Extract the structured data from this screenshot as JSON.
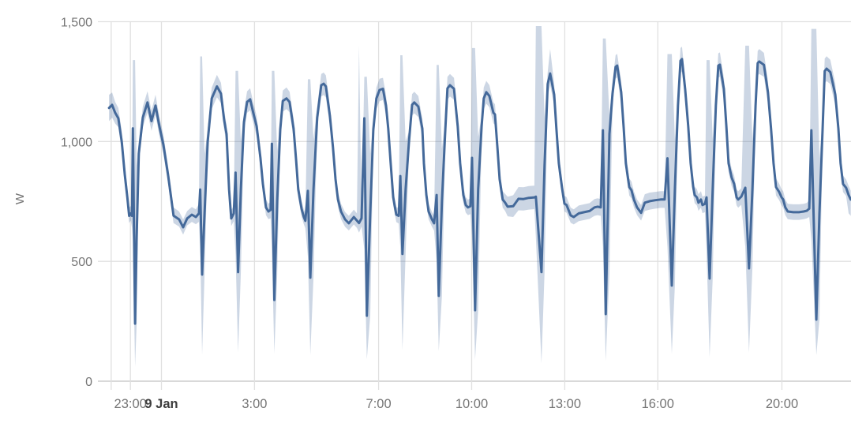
{
  "page": {
    "background": "#ffffff"
  },
  "chart_data": {
    "type": "line",
    "title": "",
    "subtitle": "",
    "xlabel": "",
    "ylabel": "W",
    "unit": "W",
    "legend": "none",
    "grid": true,
    "description": "Power (W) statistics over ~24 h: mean line with min/max band",
    "colors": {
      "mean_line": "#44699a",
      "minmax_band": "rgba(68,105,154,0.27)",
      "grid_line": "#e0e0e0",
      "axis_line": "#c2c2c2",
      "tick_label": "#757575",
      "day_label": "#3d3d3d"
    },
    "x_range_hours": [
      -1.692,
      22.227
    ],
    "ylim": [
      0,
      1500
    ],
    "x_ticks": [
      {
        "hours": -1.62,
        "label": "",
        "bold": false
      },
      {
        "hours": -1,
        "label": "23:00",
        "bold": false
      },
      {
        "hours": 0,
        "label": "9 Jan",
        "bold": true
      },
      {
        "hours": 3,
        "label": "3:00",
        "bold": false
      },
      {
        "hours": 7,
        "label": "7:00",
        "bold": false
      },
      {
        "hours": 10,
        "label": "10:00",
        "bold": false
      },
      {
        "hours": 13,
        "label": "13:00",
        "bold": false
      },
      {
        "hours": 16,
        "label": "16:00",
        "bold": false
      },
      {
        "hours": 20,
        "label": "20:00",
        "bold": false
      }
    ],
    "y_ticks": [
      {
        "value": 0,
        "label": "0"
      },
      {
        "value": 500,
        "label": "500"
      },
      {
        "value": 1000,
        "label": "1,000"
      },
      {
        "value": 1500,
        "label": "1,500"
      }
    ],
    "columns": [
      "hours_from_midnight",
      "mean_w",
      "min_w",
      "max_w"
    ],
    "points": [
      [
        -1.69,
        1140,
        1085,
        1195
      ],
      [
        -1.59,
        1153,
        1100,
        1205
      ],
      [
        -1.49,
        1120,
        1075,
        1165
      ],
      [
        -1.39,
        1097,
        1060,
        1140
      ],
      [
        -1.28,
        1000,
        960,
        1045
      ],
      [
        -1.18,
        860,
        820,
        905
      ],
      [
        -1.1,
        767,
        730,
        810
      ],
      [
        -1.04,
        690,
        660,
        725
      ],
      [
        -0.99,
        700,
        670,
        730
      ],
      [
        -0.95,
        690,
        640,
        740
      ],
      [
        -0.92,
        1055,
        590,
        1340
      ],
      [
        -0.85,
        240,
        60,
        1340
      ],
      [
        -0.8,
        600,
        240,
        900
      ],
      [
        -0.73,
        950,
        900,
        1000
      ],
      [
        -0.6,
        1100,
        1060,
        1145
      ],
      [
        -0.45,
        1163,
        1120,
        1210
      ],
      [
        -0.32,
        1085,
        1045,
        1130
      ],
      [
        -0.19,
        1150,
        1110,
        1195
      ],
      [
        -0.06,
        1060,
        1020,
        1100
      ],
      [
        0.06,
        988,
        950,
        1030
      ],
      [
        0.22,
        856,
        820,
        895
      ],
      [
        0.39,
        691,
        660,
        725
      ],
      [
        0.57,
        675,
        645,
        708
      ],
      [
        0.7,
        642,
        612,
        675
      ],
      [
        0.83,
        679,
        650,
        710
      ],
      [
        0.98,
        695,
        665,
        727
      ],
      [
        1.11,
        685,
        655,
        717
      ],
      [
        1.21,
        700,
        665,
        740
      ],
      [
        1.25,
        800,
        560,
        1355
      ],
      [
        1.31,
        445,
        110,
        1355
      ],
      [
        1.39,
        700,
        445,
        950
      ],
      [
        1.49,
        1000,
        950,
        1050
      ],
      [
        1.62,
        1180,
        1135,
        1225
      ],
      [
        1.79,
        1230,
        1185,
        1278
      ],
      [
        1.92,
        1200,
        1160,
        1245
      ],
      [
        2.02,
        1090,
        1050,
        1132
      ],
      [
        2.1,
        1031,
        990,
        1070
      ],
      [
        2.18,
        800,
        760,
        845
      ],
      [
        2.25,
        679,
        648,
        712
      ],
      [
        2.33,
        700,
        668,
        733
      ],
      [
        2.39,
        870,
        530,
        1295
      ],
      [
        2.47,
        455,
        120,
        1295
      ],
      [
        2.56,
        800,
        455,
        1000
      ],
      [
        2.66,
        1080,
        1035,
        1125
      ],
      [
        2.76,
        1165,
        1120,
        1210
      ],
      [
        2.86,
        1176,
        1130,
        1222
      ],
      [
        2.96,
        1120,
        1078,
        1163
      ],
      [
        3.07,
        1064,
        1022,
        1106
      ],
      [
        3.19,
        932,
        895,
        970
      ],
      [
        3.27,
        823,
        788,
        860
      ],
      [
        3.37,
        725,
        693,
        758
      ],
      [
        3.45,
        708,
        676,
        740
      ],
      [
        3.52,
        715,
        680,
        750
      ],
      [
        3.56,
        991,
        540,
        1295
      ],
      [
        3.64,
        339,
        115,
        1295
      ],
      [
        3.73,
        750,
        440,
        960
      ],
      [
        3.83,
        1050,
        1005,
        1095
      ],
      [
        3.91,
        1169,
        1125,
        1213
      ],
      [
        4.03,
        1180,
        1135,
        1226
      ],
      [
        4.13,
        1165,
        1122,
        1208
      ],
      [
        4.26,
        1054,
        1013,
        1096
      ],
      [
        4.34,
        922,
        885,
        960
      ],
      [
        4.41,
        800,
        765,
        837
      ],
      [
        4.52,
        718,
        686,
        750
      ],
      [
        4.59,
        685,
        654,
        716
      ],
      [
        4.64,
        669,
        638,
        700
      ],
      [
        4.72,
        794,
        520,
        1260
      ],
      [
        4.8,
        432,
        110,
        1260
      ],
      [
        4.9,
        800,
        432,
        1010
      ],
      [
        5.02,
        1100,
        1055,
        1145
      ],
      [
        5.15,
        1235,
        1188,
        1282
      ],
      [
        5.23,
        1241,
        1194,
        1288
      ],
      [
        5.3,
        1230,
        1184,
        1276
      ],
      [
        5.43,
        1107,
        1064,
        1150
      ],
      [
        5.53,
        975,
        936,
        1015
      ],
      [
        5.61,
        843,
        808,
        880
      ],
      [
        5.69,
        758,
        726,
        790
      ],
      [
        5.79,
        708,
        676,
        740
      ],
      [
        5.92,
        675,
        644,
        706
      ],
      [
        6.04,
        659,
        629,
        690
      ],
      [
        6.2,
        685,
        654,
        716
      ],
      [
        6.3,
        670,
        640,
        700
      ],
      [
        6.37,
        660,
        620,
        1400
      ],
      [
        6.45,
        680,
        645,
        715
      ],
      [
        6.54,
        1097,
        550,
        1270
      ],
      [
        6.62,
        273,
        92,
        1270
      ],
      [
        6.73,
        700,
        273,
        950
      ],
      [
        6.83,
        1050,
        1005,
        1095
      ],
      [
        6.93,
        1180,
        1135,
        1226
      ],
      [
        7.03,
        1215,
        1168,
        1262
      ],
      [
        7.14,
        1220,
        1173,
        1266
      ],
      [
        7.24,
        1150,
        1105,
        1194
      ],
      [
        7.31,
        1054,
        1013,
        1096
      ],
      [
        7.39,
        909,
        872,
        947
      ],
      [
        7.47,
        767,
        733,
        800
      ],
      [
        7.57,
        695,
        664,
        727
      ],
      [
        7.65,
        690,
        658,
        722
      ],
      [
        7.7,
        856,
        560,
        1360
      ],
      [
        7.77,
        531,
        130,
        1360
      ],
      [
        7.87,
        800,
        531,
        1000
      ],
      [
        7.98,
        1000,
        958,
        1043
      ],
      [
        8.08,
        1153,
        1108,
        1198
      ],
      [
        8.15,
        1163,
        1118,
        1208
      ],
      [
        8.28,
        1146,
        1102,
        1190
      ],
      [
        8.41,
        1054,
        1013,
        1096
      ],
      [
        8.46,
        909,
        872,
        947
      ],
      [
        8.54,
        777,
        743,
        812
      ],
      [
        8.61,
        708,
        676,
        740
      ],
      [
        8.72,
        675,
        644,
        706
      ],
      [
        8.79,
        659,
        628,
        691
      ],
      [
        8.87,
        777,
        500,
        1320
      ],
      [
        8.94,
        356,
        125,
        1320
      ],
      [
        9.04,
        750,
        356,
        970
      ],
      [
        9.15,
        1050,
        1005,
        1095
      ],
      [
        9.22,
        1222,
        1175,
        1270
      ],
      [
        9.3,
        1235,
        1188,
        1282
      ],
      [
        9.43,
        1220,
        1174,
        1266
      ],
      [
        9.55,
        1064,
        1022,
        1106
      ],
      [
        9.63,
        909,
        872,
        947
      ],
      [
        9.73,
        777,
        743,
        812
      ],
      [
        9.81,
        735,
        703,
        768
      ],
      [
        9.88,
        725,
        693,
        757
      ],
      [
        9.96,
        730,
        697,
        763
      ],
      [
        10.01,
        932,
        600,
        1390
      ],
      [
        10.11,
        296,
        90,
        1390
      ],
      [
        10.21,
        800,
        296,
        1020
      ],
      [
        10.32,
        1064,
        1020,
        1108
      ],
      [
        10.39,
        1180,
        1134,
        1226
      ],
      [
        10.47,
        1206,
        1158,
        1253
      ],
      [
        10.57,
        1190,
        1143,
        1236
      ],
      [
        10.7,
        1120,
        1076,
        1163
      ],
      [
        10.75,
        1113,
        1070,
        1156
      ],
      [
        10.83,
        975,
        936,
        1015
      ],
      [
        10.9,
        843,
        808,
        880
      ],
      [
        11.0,
        758,
        724,
        793
      ],
      [
        11.08,
        745,
        710,
        781
      ],
      [
        11.16,
        728,
        688,
        770
      ],
      [
        11.34,
        730,
        685,
        776
      ],
      [
        11.51,
        761,
        713,
        810
      ],
      [
        11.67,
        760,
        712,
        809
      ],
      [
        11.84,
        765,
        716,
        814
      ],
      [
        12.02,
        767,
        718,
        816
      ],
      [
        12.07,
        770,
        600,
        1482
      ],
      [
        12.25,
        455,
        75,
        1482
      ],
      [
        12.35,
        900,
        455,
        1100
      ],
      [
        12.45,
        1240,
        1192,
        1290
      ],
      [
        12.53,
        1284,
        1236,
        1386
      ],
      [
        12.66,
        1196,
        1150,
        1242
      ],
      [
        12.73,
        1054,
        1013,
        1096
      ],
      [
        12.81,
        909,
        872,
        947
      ],
      [
        12.91,
        810,
        775,
        846
      ],
      [
        12.99,
        741,
        708,
        774
      ],
      [
        13.06,
        735,
        702,
        768
      ],
      [
        13.19,
        692,
        661,
        724
      ],
      [
        13.29,
        685,
        654,
        717
      ],
      [
        13.45,
        700,
        668,
        733
      ],
      [
        13.62,
        705,
        672,
        738
      ],
      [
        13.8,
        710,
        677,
        743
      ],
      [
        13.96,
        725,
        690,
        760
      ],
      [
        14.06,
        728,
        693,
        763
      ],
      [
        14.16,
        725,
        690,
        760
      ],
      [
        14.23,
        1047,
        560,
        1430
      ],
      [
        14.32,
        280,
        85,
        1430
      ],
      [
        14.44,
        1031,
        450,
        1110
      ],
      [
        14.54,
        1200,
        1155,
        1248
      ],
      [
        14.64,
        1311,
        1262,
        1360
      ],
      [
        14.69,
        1317,
        1268,
        1366
      ],
      [
        14.82,
        1206,
        1160,
        1253
      ],
      [
        14.9,
        1054,
        1013,
        1096
      ],
      [
        14.97,
        909,
        872,
        947
      ],
      [
        15.08,
        810,
        775,
        846
      ],
      [
        15.15,
        797,
        762,
        833
      ],
      [
        15.23,
        758,
        725,
        792
      ],
      [
        15.33,
        725,
        693,
        758
      ],
      [
        15.46,
        702,
        670,
        735
      ],
      [
        15.58,
        745,
        710,
        780
      ],
      [
        15.74,
        751,
        716,
        787
      ],
      [
        15.92,
        755,
        720,
        790
      ],
      [
        16.09,
        758,
        723,
        793
      ],
      [
        16.22,
        758,
        723,
        793
      ],
      [
        16.31,
        930,
        560,
        1365
      ],
      [
        16.45,
        399,
        115,
        1365
      ],
      [
        16.55,
        800,
        399,
        1010
      ],
      [
        16.65,
        1150,
        1103,
        1198
      ],
      [
        16.73,
        1337,
        1285,
        1390
      ],
      [
        16.78,
        1344,
        1292,
        1396
      ],
      [
        16.88,
        1219,
        1172,
        1266
      ],
      [
        16.98,
        1064,
        1022,
        1106
      ],
      [
        17.06,
        909,
        872,
        947
      ],
      [
        17.14,
        810,
        775,
        846
      ],
      [
        17.19,
        777,
        743,
        812
      ],
      [
        17.26,
        767,
        733,
        801
      ],
      [
        17.31,
        745,
        711,
        780
      ],
      [
        17.39,
        758,
        724,
        793
      ],
      [
        17.44,
        735,
        701,
        770
      ],
      [
        17.52,
        740,
        705,
        775
      ],
      [
        17.57,
        767,
        540,
        1340
      ],
      [
        17.67,
        428,
        100,
        1340
      ],
      [
        17.77,
        800,
        428,
        1010
      ],
      [
        17.87,
        1150,
        1103,
        1198
      ],
      [
        17.95,
        1317,
        1266,
        1368
      ],
      [
        18.0,
        1321,
        1270,
        1372
      ],
      [
        18.13,
        1219,
        1172,
        1266
      ],
      [
        18.21,
        1064,
        1022,
        1106
      ],
      [
        18.28,
        909,
        872,
        947
      ],
      [
        18.38,
        850,
        814,
        887
      ],
      [
        18.46,
        823,
        789,
        858
      ],
      [
        18.54,
        767,
        733,
        801
      ],
      [
        18.59,
        758,
        724,
        793
      ],
      [
        18.69,
        770,
        736,
        805
      ],
      [
        18.82,
        807,
        560,
        1400
      ],
      [
        18.94,
        471,
        119,
        1400
      ],
      [
        19.05,
        800,
        471,
        1010
      ],
      [
        19.15,
        1150,
        1103,
        1198
      ],
      [
        19.22,
        1327,
        1276,
        1378
      ],
      [
        19.27,
        1334,
        1282,
        1386
      ],
      [
        19.42,
        1320,
        1270,
        1370
      ],
      [
        19.55,
        1206,
        1160,
        1253
      ],
      [
        19.65,
        1054,
        1013,
        1096
      ],
      [
        19.73,
        909,
        872,
        947
      ],
      [
        19.81,
        810,
        775,
        846
      ],
      [
        19.91,
        790,
        756,
        825
      ],
      [
        19.99,
        767,
        733,
        801
      ],
      [
        20.04,
        758,
        724,
        793
      ],
      [
        20.11,
        725,
        693,
        758
      ],
      [
        20.19,
        708,
        676,
        740
      ],
      [
        20.37,
        705,
        673,
        738
      ],
      [
        20.55,
        705,
        673,
        738
      ],
      [
        20.7,
        708,
        676,
        740
      ],
      [
        20.8,
        711,
        679,
        744
      ],
      [
        20.88,
        720,
        685,
        755
      ],
      [
        20.95,
        1047,
        590,
        1470
      ],
      [
        21.11,
        257,
        109,
        1470
      ],
      [
        21.21,
        700,
        257,
        930
      ],
      [
        21.31,
        1050,
        1003,
        1098
      ],
      [
        21.38,
        1294,
        1243,
        1346
      ],
      [
        21.44,
        1304,
        1252,
        1356
      ],
      [
        21.56,
        1290,
        1240,
        1341
      ],
      [
        21.72,
        1196,
        1150,
        1243
      ],
      [
        21.82,
        1054,
        1013,
        1096
      ],
      [
        21.89,
        909,
        872,
        947
      ],
      [
        21.97,
        823,
        789,
        858
      ],
      [
        22.07,
        807,
        773,
        842
      ],
      [
        22.15,
        777,
        700,
        815
      ],
      [
        22.22,
        758,
        690,
        795
      ]
    ]
  }
}
